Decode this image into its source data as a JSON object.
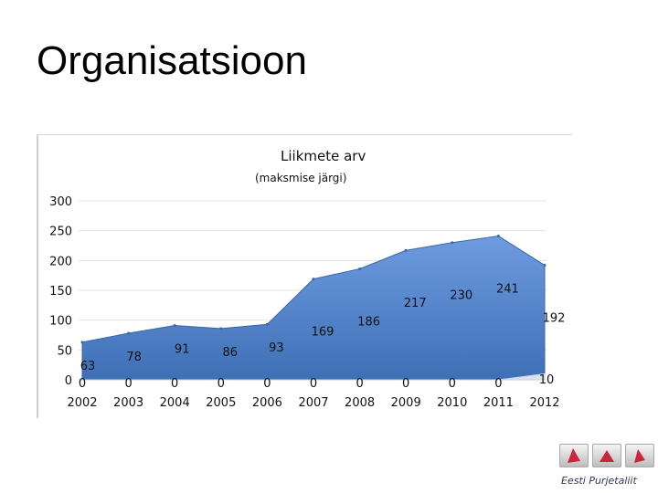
{
  "slide": {
    "title": "Organisatsioon"
  },
  "logo": {
    "text": "Eesti Purjetaliit"
  },
  "chart_data": {
    "type": "area",
    "title": "Liikmete arv",
    "subtitle": "(maksmise järgi)",
    "categories": [
      "2002",
      "2003",
      "2004",
      "2005",
      "2006",
      "2007",
      "2008",
      "2009",
      "2010",
      "2011",
      "2012"
    ],
    "series": [
      {
        "values": [
          63,
          78,
          91,
          86,
          93,
          169,
          186,
          217,
          230,
          241,
          192
        ],
        "color": "#4f82c6"
      },
      {
        "values": [
          0,
          0,
          0,
          0,
          0,
          0,
          0,
          0,
          0,
          0,
          10
        ],
        "color": "#d9e2f0"
      }
    ],
    "data_labels": {
      "series0": [
        "63",
        "78",
        "91",
        "86",
        "93",
        "169",
        "186",
        "217",
        "230",
        "241",
        "192"
      ],
      "series1": [
        "0",
        "0",
        "0",
        "0",
        "0",
        "0",
        "0",
        "0",
        "0",
        "0",
        "10"
      ]
    },
    "yticks": [
      "300",
      "250",
      "200",
      "150",
      "100",
      "50",
      "0"
    ],
    "ylim": [
      0,
      300
    ],
    "grid": true,
    "legend": "none"
  }
}
